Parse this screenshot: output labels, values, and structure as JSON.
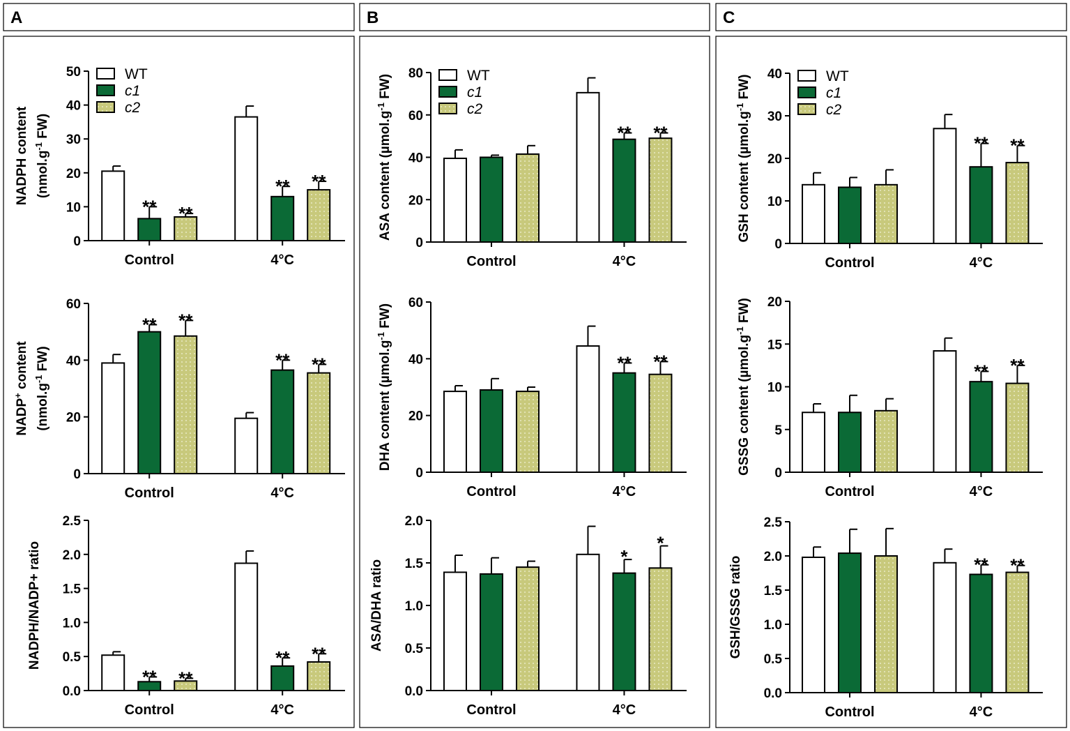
{
  "colors": {
    "WT": "#ffffff",
    "c1": "#0b6a36",
    "c2": "#c8c97c",
    "stroke": "#000000",
    "dots": "#ffffff"
  },
  "legend": [
    {
      "key": "WT",
      "label": "WT",
      "italic": false
    },
    {
      "key": "c1",
      "label": "c1",
      "italic": true
    },
    {
      "key": "c2",
      "label": "c2",
      "italic": true
    }
  ],
  "columns": [
    {
      "label": "A"
    },
    {
      "label": "B"
    },
    {
      "label": "C"
    }
  ],
  "chart_data": [
    {
      "type": "bar",
      "column": 0,
      "row": 0,
      "ylabel": [
        [
          {
            "t": "NADPH content"
          }
        ],
        [
          {
            "t": "(nmol.g"
          },
          {
            "t": "-1",
            "sup": true
          },
          {
            "t": " FW)"
          }
        ]
      ],
      "ylim": [
        0,
        50
      ],
      "yticks": [
        0,
        10,
        20,
        30,
        40,
        50
      ],
      "decimals": 0,
      "categories": [
        "Control",
        "4°C"
      ],
      "series": [
        {
          "name": "WT",
          "values": [
            20.5,
            36.5
          ],
          "errors": [
            1.5,
            3.2
          ],
          "sig": [
            "",
            ""
          ]
        },
        {
          "name": "c1",
          "values": [
            6.5,
            13
          ],
          "errors": [
            3.5,
            3
          ],
          "sig": [
            "**",
            "**"
          ]
        },
        {
          "name": "c2",
          "values": [
            7,
            15
          ],
          "errors": [
            1,
            2.5
          ],
          "sig": [
            "**",
            "**"
          ]
        }
      ]
    },
    {
      "type": "bar",
      "column": 0,
      "row": 1,
      "ylabel": [
        [
          {
            "t": "NADP"
          },
          {
            "t": "+",
            "sup": true
          },
          {
            "t": " content"
          }
        ],
        [
          {
            "t": "(nmol.g"
          },
          {
            "t": "-1",
            "sup": true
          },
          {
            "t": " FW)"
          }
        ]
      ],
      "ylim": [
        0,
        60
      ],
      "yticks": [
        0,
        20,
        40,
        60
      ],
      "decimals": 0,
      "categories": [
        "Control",
        "4°C"
      ],
      "series": [
        {
          "name": "WT",
          "values": [
            39,
            19.5
          ],
          "errors": [
            3,
            2
          ],
          "sig": [
            "",
            ""
          ]
        },
        {
          "name": "c1",
          "values": [
            50,
            36.5
          ],
          "errors": [
            2.5,
            3.5
          ],
          "sig": [
            "**",
            "**"
          ]
        },
        {
          "name": "c2",
          "values": [
            48.5,
            35.5
          ],
          "errors": [
            5.5,
            3
          ],
          "sig": [
            "**",
            "**"
          ]
        }
      ]
    },
    {
      "type": "bar",
      "column": 0,
      "row": 2,
      "ylabel": [
        [
          {
            "t": "NADPH/NADP+ ratio"
          }
        ]
      ],
      "ylim": [
        0,
        2.5
      ],
      "yticks": [
        0,
        0.5,
        1,
        1.5,
        2,
        2.5
      ],
      "decimals": 1,
      "categories": [
        "Control",
        "4°C"
      ],
      "series": [
        {
          "name": "WT",
          "values": [
            0.52,
            1.87
          ],
          "errors": [
            0.05,
            0.18
          ],
          "sig": [
            "",
            ""
          ]
        },
        {
          "name": "c1",
          "values": [
            0.13,
            0.36
          ],
          "errors": [
            0.07,
            0.12
          ],
          "sig": [
            "**",
            "**"
          ]
        },
        {
          "name": "c2",
          "values": [
            0.14,
            0.42
          ],
          "errors": [
            0.04,
            0.12
          ],
          "sig": [
            "**",
            "**"
          ]
        }
      ]
    },
    {
      "type": "bar",
      "column": 1,
      "row": 0,
      "ylabel": [
        [
          {
            "t": "ASA content (µmol.g"
          },
          {
            "t": "-1",
            "sup": true
          },
          {
            "t": " FW)"
          }
        ]
      ],
      "ylim": [
        0,
        80
      ],
      "yticks": [
        0,
        20,
        40,
        60,
        80
      ],
      "decimals": 0,
      "categories": [
        "Control",
        "4°C"
      ],
      "series": [
        {
          "name": "WT",
          "values": [
            39.5,
            70.5
          ],
          "errors": [
            4,
            7
          ],
          "sig": [
            "",
            ""
          ]
        },
        {
          "name": "c1",
          "values": [
            40,
            48.5
          ],
          "errors": [
            1,
            3
          ],
          "sig": [
            "",
            "**"
          ]
        },
        {
          "name": "c2",
          "values": [
            41.5,
            49
          ],
          "errors": [
            4,
            2.5
          ],
          "sig": [
            "",
            "**"
          ]
        }
      ]
    },
    {
      "type": "bar",
      "column": 1,
      "row": 1,
      "ylabel": [
        [
          {
            "t": "DHA content (µmol.g"
          },
          {
            "t": "-1",
            "sup": true
          },
          {
            "t": " FW)"
          }
        ]
      ],
      "ylim": [
        0,
        60
      ],
      "yticks": [
        0,
        20,
        40,
        60
      ],
      "decimals": 0,
      "categories": [
        "Control",
        "4°C"
      ],
      "series": [
        {
          "name": "WT",
          "values": [
            28.5,
            44.5
          ],
          "errors": [
            2,
            7
          ],
          "sig": [
            "",
            ""
          ]
        },
        {
          "name": "c1",
          "values": [
            29,
            35
          ],
          "errors": [
            4,
            3.5
          ],
          "sig": [
            "",
            "**"
          ]
        },
        {
          "name": "c2",
          "values": [
            28.5,
            34.5
          ],
          "errors": [
            1.5,
            4.5
          ],
          "sig": [
            "",
            "**"
          ]
        }
      ]
    },
    {
      "type": "bar",
      "column": 1,
      "row": 2,
      "ylabel": [
        [
          {
            "t": "ASA/DHA ratio"
          }
        ]
      ],
      "ylim": [
        0,
        2
      ],
      "yticks": [
        0,
        0.5,
        1,
        1.5,
        2
      ],
      "decimals": 1,
      "categories": [
        "Control",
        "4°C"
      ],
      "series": [
        {
          "name": "WT",
          "values": [
            1.39,
            1.6
          ],
          "errors": [
            0.2,
            0.33
          ],
          "sig": [
            "",
            ""
          ]
        },
        {
          "name": "c1",
          "values": [
            1.37,
            1.38
          ],
          "errors": [
            0.19,
            0.16
          ],
          "sig": [
            "",
            "*"
          ]
        },
        {
          "name": "c2",
          "values": [
            1.45,
            1.44
          ],
          "errors": [
            0.07,
            0.26
          ],
          "sig": [
            "",
            "*"
          ]
        }
      ]
    },
    {
      "type": "bar",
      "column": 2,
      "row": 0,
      "ylabel": [
        [
          {
            "t": "GSH content (µmol.g"
          },
          {
            "t": "-1",
            "sup": true
          },
          {
            "t": " FW)"
          }
        ]
      ],
      "ylim": [
        0,
        40
      ],
      "yticks": [
        0,
        10,
        20,
        30,
        40
      ],
      "decimals": 0,
      "categories": [
        "Control",
        "4°C"
      ],
      "series": [
        {
          "name": "WT",
          "values": [
            13.8,
            27
          ],
          "errors": [
            2.8,
            3.3
          ],
          "sig": [
            "",
            ""
          ]
        },
        {
          "name": "c1",
          "values": [
            13.2,
            18
          ],
          "errors": [
            2.3,
            5.5
          ],
          "sig": [
            "",
            "**"
          ]
        },
        {
          "name": "c2",
          "values": [
            13.8,
            19
          ],
          "errors": [
            3.5,
            4
          ],
          "sig": [
            "",
            "**"
          ]
        }
      ]
    },
    {
      "type": "bar",
      "column": 2,
      "row": 1,
      "ylabel": [
        [
          {
            "t": "GSSG content (µmol.g"
          },
          {
            "t": "-1",
            "sup": true
          },
          {
            "t": " FW)"
          }
        ]
      ],
      "ylim": [
        0,
        20
      ],
      "yticks": [
        0,
        5,
        10,
        15,
        20
      ],
      "decimals": 0,
      "categories": [
        "Control",
        "4°C"
      ],
      "series": [
        {
          "name": "WT",
          "values": [
            7,
            14.2
          ],
          "errors": [
            1,
            1.5
          ],
          "sig": [
            "",
            ""
          ]
        },
        {
          "name": "c1",
          "values": [
            7,
            10.6
          ],
          "errors": [
            2,
            1.2
          ],
          "sig": [
            "",
            "**"
          ]
        },
        {
          "name": "c2",
          "values": [
            7.2,
            10.4
          ],
          "errors": [
            1.4,
            2.1
          ],
          "sig": [
            "",
            "**"
          ]
        }
      ]
    },
    {
      "type": "bar",
      "column": 2,
      "row": 2,
      "ylabel": [
        [
          {
            "t": "GSH/GSSG ratio"
          }
        ]
      ],
      "ylim": [
        0,
        2.5
      ],
      "yticks": [
        0,
        0.5,
        1,
        1.5,
        2,
        2.5
      ],
      "decimals": 1,
      "categories": [
        "Control",
        "4°C"
      ],
      "series": [
        {
          "name": "WT",
          "values": [
            1.98,
            1.9
          ],
          "errors": [
            0.15,
            0.2
          ],
          "sig": [
            "",
            ""
          ]
        },
        {
          "name": "c1",
          "values": [
            2.04,
            1.73
          ],
          "errors": [
            0.35,
            0.14
          ],
          "sig": [
            "",
            "**"
          ]
        },
        {
          "name": "c2",
          "values": [
            2,
            1.76
          ],
          "errors": [
            0.4,
            0.1
          ],
          "sig": [
            "",
            "**"
          ]
        }
      ]
    }
  ]
}
